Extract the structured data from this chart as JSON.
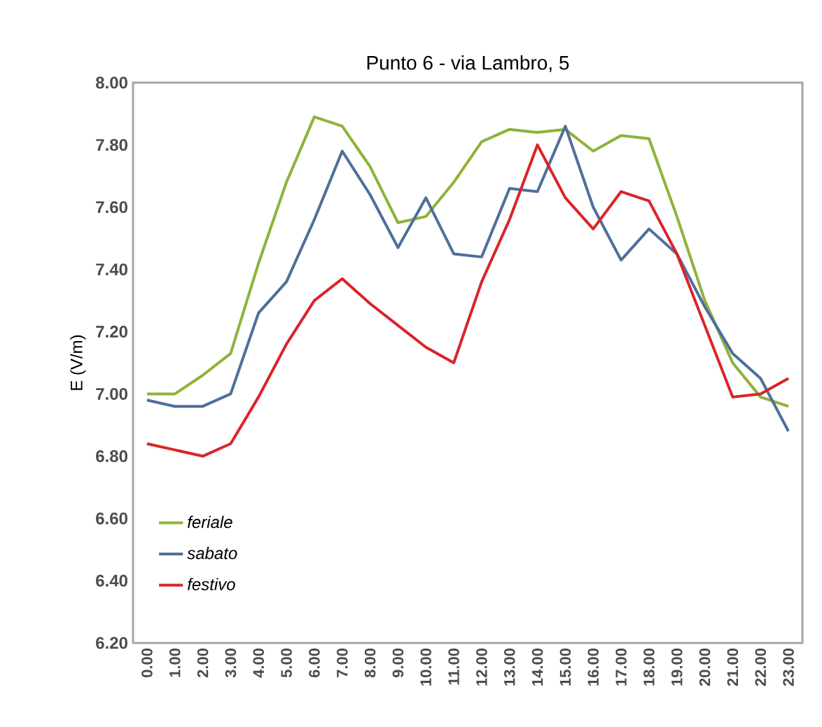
{
  "chart_data": {
    "type": "line",
    "title": "Punto 6 - via Lambro, 5",
    "ylabel": "E (V/m)",
    "categories": [
      "0.00",
      "1.00",
      "2.00",
      "3.00",
      "4.00",
      "5.00",
      "6.00",
      "7.00",
      "8.00",
      "9.00",
      "10.00",
      "11.00",
      "12.00",
      "13.00",
      "14.00",
      "15.00",
      "16.00",
      "17.00",
      "18.00",
      "19.00",
      "20.00",
      "21.00",
      "22.00",
      "23.00"
    ],
    "series": [
      {
        "name": "*feriale*",
        "color": "#8db33a",
        "values": [
          7.0,
          7.0,
          7.06,
          7.13,
          7.42,
          7.68,
          7.89,
          7.86,
          7.73,
          7.55,
          7.57,
          7.68,
          7.81,
          7.85,
          7.84,
          7.85,
          7.78,
          7.83,
          7.82,
          7.57,
          7.3,
          7.1,
          6.99,
          6.96
        ]
      },
      {
        "name": "*sabato*",
        "color": "#4f6f9c",
        "values": [
          6.98,
          6.96,
          6.96,
          7.0,
          7.26,
          7.36,
          7.56,
          7.78,
          7.64,
          7.47,
          7.63,
          7.45,
          7.44,
          7.66,
          7.65,
          7.86,
          7.6,
          7.43,
          7.53,
          7.45,
          7.28,
          7.13,
          7.05,
          6.88
        ]
      },
      {
        "name": "*festivo*",
        "color": "#d9242a",
        "values": [
          6.84,
          6.82,
          6.8,
          6.84,
          6.99,
          7.16,
          7.3,
          7.37,
          7.29,
          7.22,
          7.15,
          7.1,
          7.36,
          7.56,
          7.8,
          7.63,
          7.53,
          7.65,
          7.62,
          7.45,
          7.22,
          6.99,
          7.0,
          7.05
        ]
      }
    ],
    "ylim": [
      6.2,
      8.0
    ],
    "yticks": [
      {
        "value": 6.2,
        "label": "6.20"
      },
      {
        "value": 6.4,
        "label": "6.40"
      },
      {
        "value": 6.6,
        "label": "6.60"
      },
      {
        "value": 6.8,
        "label": "6.80"
      },
      {
        "value": 7.0,
        "label": "7.00"
      },
      {
        "value": 7.2,
        "label": "7.20"
      },
      {
        "value": 7.4,
        "label": "7.40"
      },
      {
        "value": 7.6,
        "label": "7.60"
      },
      {
        "value": 7.8,
        "label": "7.80"
      },
      {
        "value": 8.0,
        "label": "8.00"
      }
    ],
    "grid": false,
    "legend": "bottom left",
    "marker": "none",
    "line_style": "solid"
  }
}
